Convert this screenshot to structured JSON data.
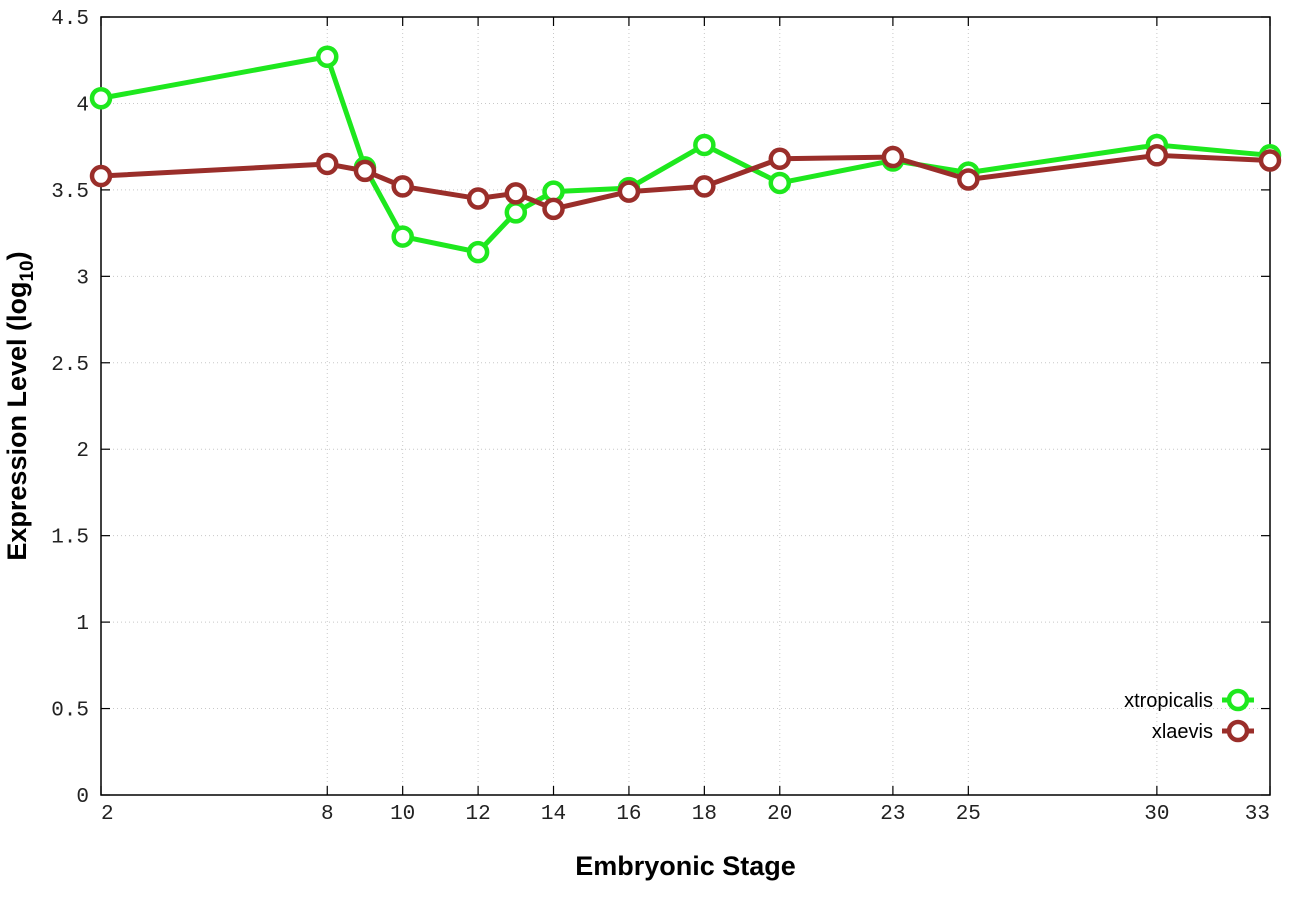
{
  "chart_data": {
    "type": "line",
    "xlabel": "Embryonic Stage",
    "ylabel": "Expression Level (log",
    "ylabel_subscript": "10",
    "ylabel_suffix": ")",
    "x": [
      2,
      8,
      9,
      10,
      12,
      13,
      14,
      16,
      18,
      20,
      23,
      25,
      30,
      33
    ],
    "x_ticks": [
      2,
      8,
      10,
      12,
      14,
      16,
      18,
      20,
      23,
      25,
      30,
      33
    ],
    "x_tick_labels": [
      "2",
      "8",
      "10",
      "12",
      "14",
      "16",
      "18",
      "20",
      "23",
      "25",
      "30",
      "33"
    ],
    "y_ticks": [
      0,
      0.5,
      1,
      1.5,
      2,
      2.5,
      3,
      3.5,
      4,
      4.5
    ],
    "y_tick_labels": [
      "0",
      "0.5",
      "1",
      "1.5",
      "2",
      "2.5",
      "3",
      "3.5",
      "4",
      "4.5"
    ],
    "xlim": [
      2,
      33
    ],
    "ylim": [
      0,
      4.5
    ],
    "grid": true,
    "legend_position": "bottom-right",
    "series": [
      {
        "name": "xtropicalis",
        "color": "#1ee81e",
        "values": [
          4.03,
          4.27,
          3.63,
          3.23,
          3.14,
          3.37,
          3.49,
          3.51,
          3.76,
          3.54,
          3.67,
          3.6,
          3.76,
          3.7
        ]
      },
      {
        "name": "xlaevis",
        "color": "#9a2e2a",
        "values": [
          3.58,
          3.65,
          3.61,
          3.52,
          3.45,
          3.48,
          3.39,
          3.49,
          3.52,
          3.68,
          3.69,
          3.56,
          3.7,
          3.67
        ]
      }
    ]
  }
}
